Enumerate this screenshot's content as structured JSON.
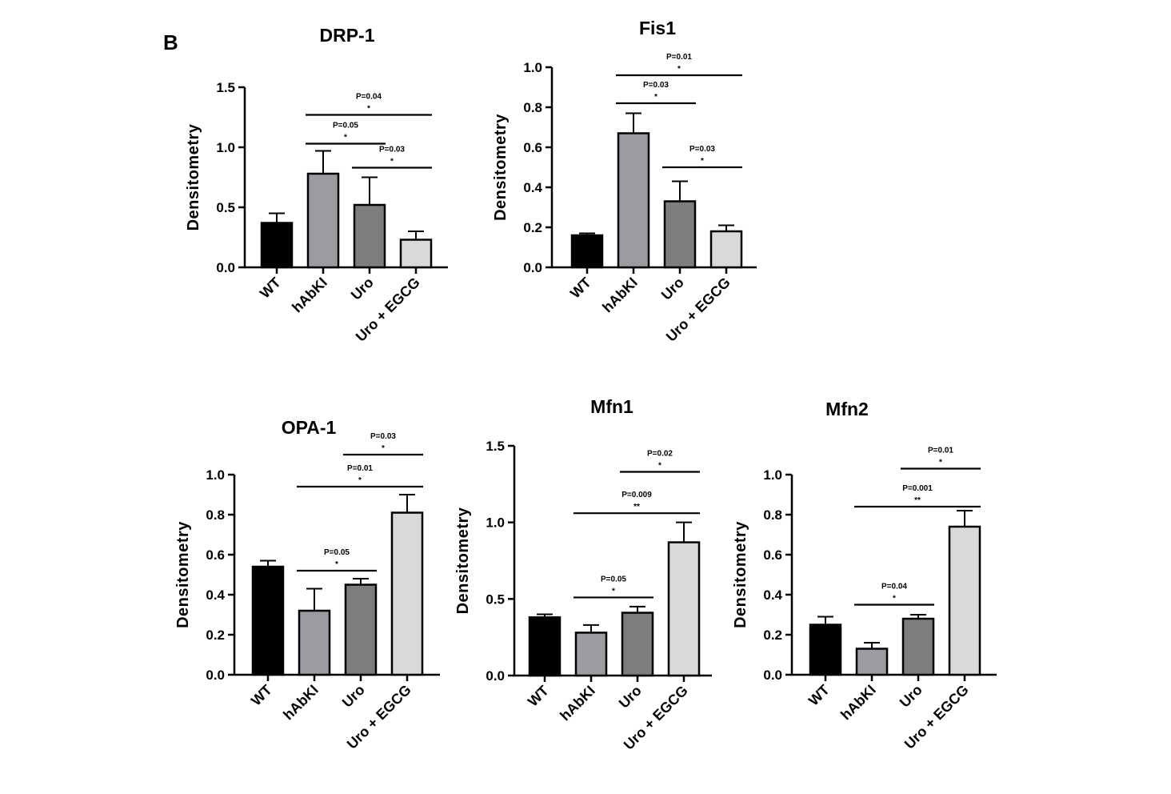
{
  "figure_label": "B",
  "colors": {
    "axis": "#000000",
    "bar_fills": [
      "#000000",
      "#9b9ca1",
      "#7d7d7d",
      "#d9d9d9"
    ]
  },
  "chart_data": [
    {
      "type": "bar",
      "title": "DRP-1",
      "xlabel": "",
      "ylabel": "Densitometry",
      "ylim": [
        0,
        1.5
      ],
      "yticks": [
        "0.0",
        "0.5",
        "1.0",
        "1.5"
      ],
      "categories": [
        "WT",
        "hAbKI",
        "Uro",
        "Uro + EGCG"
      ],
      "values": [
        0.37,
        0.78,
        0.52,
        0.23
      ],
      "errors": [
        0.08,
        0.19,
        0.23,
        0.07
      ],
      "grid": false,
      "comparisons": [
        {
          "from": 1,
          "to": 3,
          "y": 1.27,
          "p": "P=0.04",
          "sig": "*"
        },
        {
          "from": 1,
          "to": 2,
          "y": 1.03,
          "p": "P=0.05",
          "sig": "*"
        },
        {
          "from": 2,
          "to": 3,
          "y": 0.83,
          "p": "P=0.03",
          "sig": "*"
        }
      ]
    },
    {
      "type": "bar",
      "title": "Fis1",
      "xlabel": "",
      "ylabel": "Densitometry",
      "ylim": [
        0,
        1.0
      ],
      "yticks": [
        "0.0",
        "0.2",
        "0.4",
        "0.6",
        "0.8",
        "1.0"
      ],
      "categories": [
        "WT",
        "hAbKI",
        "Uro",
        "Uro + EGCG"
      ],
      "values": [
        0.16,
        0.67,
        0.33,
        0.18
      ],
      "errors": [
        0.01,
        0.1,
        0.1,
        0.03
      ],
      "grid": false,
      "comparisons": [
        {
          "from": 1,
          "to": 3,
          "y": 0.96,
          "p": "P=0.01",
          "sig": "*"
        },
        {
          "from": 1,
          "to": 2,
          "y": 0.82,
          "p": "P=0.03",
          "sig": "*"
        },
        {
          "from": 2,
          "to": 3,
          "y": 0.5,
          "p": "P=0.03",
          "sig": "*"
        }
      ]
    },
    {
      "type": "bar",
      "title": "OPA-1",
      "xlabel": "",
      "ylabel": "Densitometry",
      "ylim": [
        0,
        1.0
      ],
      "yticks": [
        "0.0",
        "0.2",
        "0.4",
        "0.6",
        "0.8",
        "1.0"
      ],
      "categories": [
        "WT",
        "hAbKI",
        "Uro",
        "Uro + EGCG"
      ],
      "values": [
        0.54,
        0.32,
        0.45,
        0.81
      ],
      "errors": [
        0.03,
        0.11,
        0.03,
        0.09
      ],
      "grid": false,
      "comparisons": [
        {
          "from": 2,
          "to": 3,
          "y": 1.1,
          "p": "P=0.03",
          "sig": "*"
        },
        {
          "from": 1,
          "to": 3,
          "y": 0.94,
          "p": "P=0.01",
          "sig": "*"
        },
        {
          "from": 1,
          "to": 2,
          "y": 0.52,
          "p": "P=0.05",
          "sig": "*"
        }
      ]
    },
    {
      "type": "bar",
      "title": "Mfn1",
      "xlabel": "",
      "ylabel": "Densitometry",
      "ylim": [
        0,
        1.5
      ],
      "yticks": [
        "0.0",
        "0.5",
        "1.0",
        "1.5"
      ],
      "categories": [
        "WT",
        "hAbKI",
        "Uro",
        "Uro + EGCG"
      ],
      "values": [
        0.38,
        0.28,
        0.41,
        0.87
      ],
      "errors": [
        0.02,
        0.05,
        0.04,
        0.13
      ],
      "grid": false,
      "comparisons": [
        {
          "from": 2,
          "to": 3,
          "y": 1.33,
          "p": "P=0.02",
          "sig": "*"
        },
        {
          "from": 1,
          "to": 3,
          "y": 1.06,
          "p": "P=0.009",
          "sig": "**"
        },
        {
          "from": 1,
          "to": 2,
          "y": 0.51,
          "p": "P=0.05",
          "sig": "*"
        }
      ]
    },
    {
      "type": "bar",
      "title": "Mfn2",
      "xlabel": "",
      "ylabel": "Densitometry",
      "ylim": [
        0,
        1.0
      ],
      "yticks": [
        "0.0",
        "0.2",
        "0.4",
        "0.6",
        "0.8",
        "1.0"
      ],
      "categories": [
        "WT",
        "hAbKI",
        "Uro",
        "Uro + EGCG"
      ],
      "values": [
        0.25,
        0.13,
        0.28,
        0.74
      ],
      "errors": [
        0.04,
        0.03,
        0.02,
        0.08
      ],
      "grid": false,
      "comparisons": [
        {
          "from": 2,
          "to": 3,
          "y": 1.03,
          "p": "P=0.01",
          "sig": "*"
        },
        {
          "from": 1,
          "to": 3,
          "y": 0.84,
          "p": "P=0.001",
          "sig": "**"
        },
        {
          "from": 1,
          "to": 2,
          "y": 0.35,
          "p": "P=0.04",
          "sig": "*"
        }
      ]
    }
  ]
}
